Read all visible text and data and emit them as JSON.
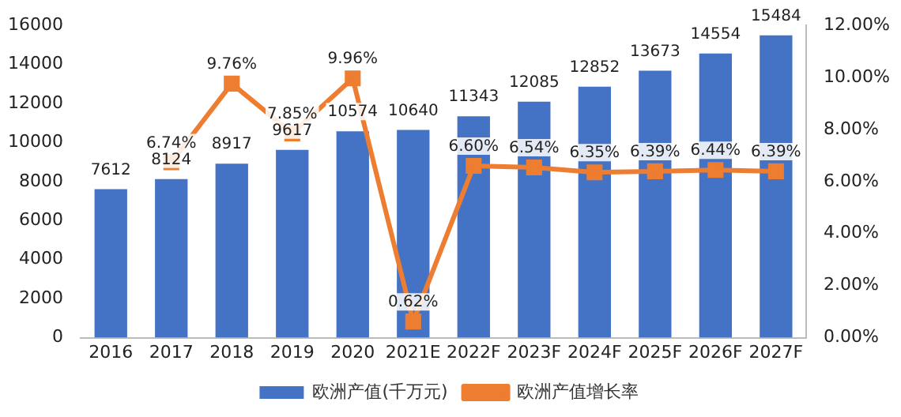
{
  "chart_data": {
    "type": "bar",
    "categories": [
      "2016",
      "2017",
      "2018",
      "2019",
      "2020",
      "2021E",
      "2022F",
      "2023F",
      "2024F",
      "2025F",
      "2026F",
      "2027F"
    ],
    "series": [
      {
        "name": "欧洲产值(千万元)",
        "color": "#4472c4",
        "values": [
          7612,
          8124,
          8917,
          9617,
          10574,
          10640,
          11343,
          12085,
          12852,
          13673,
          14554,
          15484
        ],
        "value_labels": [
          "7612",
          "8124",
          "8917",
          "9617",
          "10574",
          "10640",
          "11343",
          "12085",
          "12852",
          "13673",
          "14554",
          "15484"
        ]
      },
      {
        "name": "欧洲产值增长率",
        "type": "line",
        "axis": "y2",
        "color": "#ed7d31",
        "values": [
          null,
          6.74,
          9.76,
          7.85,
          9.96,
          0.62,
          6.6,
          6.54,
          6.35,
          6.39,
          6.44,
          6.39
        ],
        "value_labels": [
          null,
          "6.74%",
          "9.76%",
          "7.85%",
          "9.96%",
          "0.62%",
          "6.60%",
          "6.54%",
          "6.35%",
          "6.39%",
          "6.44%",
          "6.39%"
        ]
      }
    ],
    "ylim": [
      0,
      16000
    ],
    "yticks": [
      0,
      2000,
      4000,
      6000,
      8000,
      10000,
      12000,
      14000,
      16000
    ],
    "y2lim": [
      0,
      12
    ],
    "y2ticks": [
      {
        "value": 0,
        "label": "0.00%"
      },
      {
        "value": 2,
        "label": "2.00%"
      },
      {
        "value": 4,
        "label": "4.00%"
      },
      {
        "value": 6,
        "label": "6.00%"
      },
      {
        "value": 8,
        "label": "8.00%"
      },
      {
        "value": 10,
        "label": "10.00%"
      },
      {
        "value": 12,
        "label": "12.00%"
      }
    ],
    "grid": false,
    "legend": "bottom",
    "marker": "square",
    "line_style": "solid"
  }
}
